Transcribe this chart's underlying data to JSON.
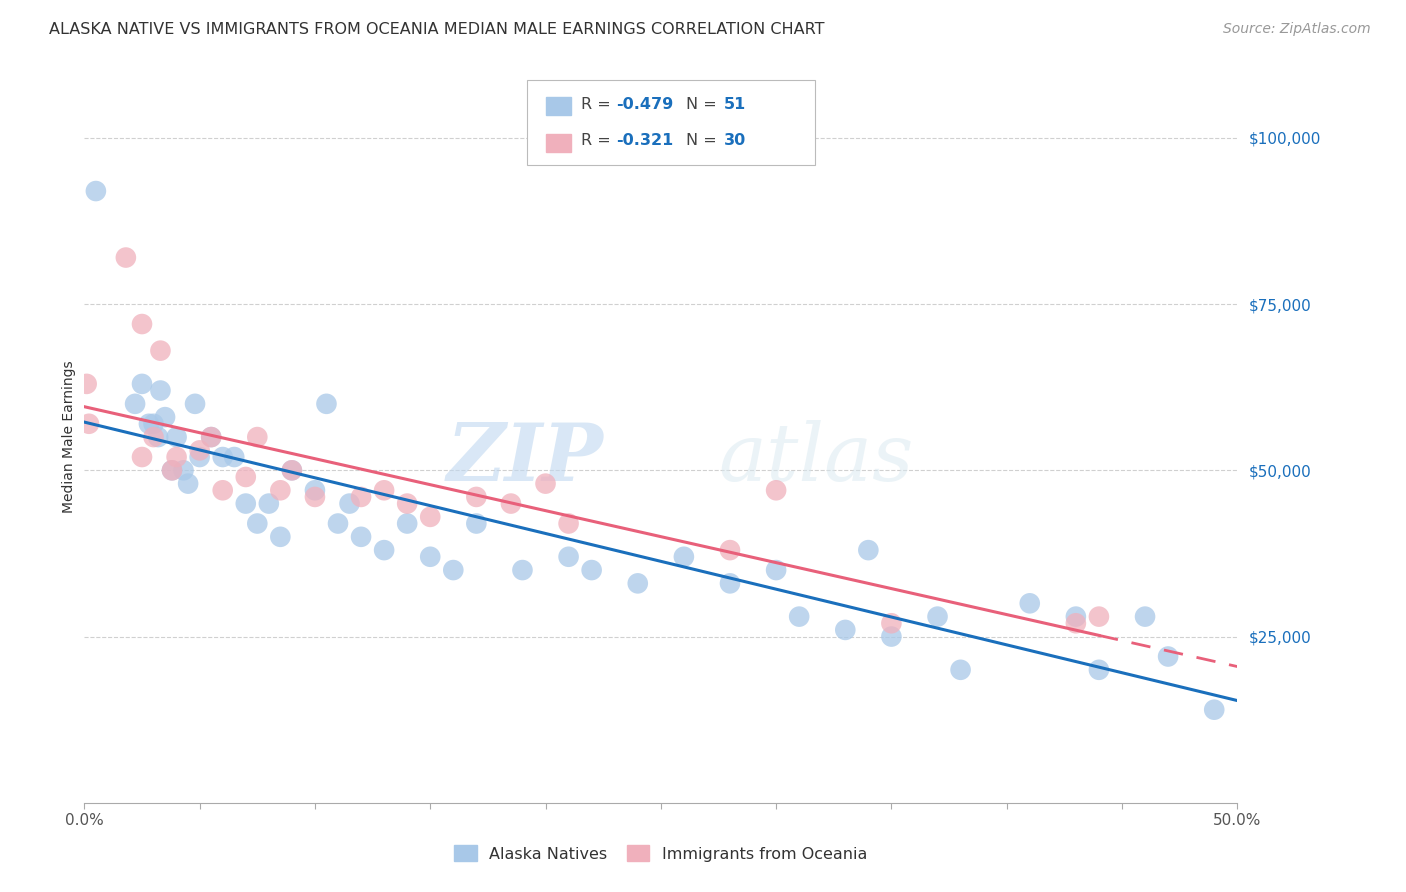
{
  "title": "ALASKA NATIVE VS IMMIGRANTS FROM OCEANIA MEDIAN MALE EARNINGS CORRELATION CHART",
  "source": "Source: ZipAtlas.com",
  "ylabel": "Median Male Earnings",
  "ytick_labels": [
    "$25,000",
    "$50,000",
    "$75,000",
    "$100,000"
  ],
  "ytick_values": [
    25000,
    50000,
    75000,
    100000
  ],
  "xlim": [
    0.0,
    0.5
  ],
  "ylim": [
    0,
    110000
  ],
  "background_color": "#ffffff",
  "grid_color": "#d0d0d0",
  "watermark": "ZIPatlas",
  "blue_color": "#a8c8e8",
  "pink_color": "#f0b0bc",
  "blue_line_color": "#1a6fbc",
  "pink_line_color": "#e8607a",
  "blue_x": [
    0.005,
    0.022,
    0.025,
    0.028,
    0.03,
    0.032,
    0.033,
    0.035,
    0.038,
    0.04,
    0.043,
    0.045,
    0.048,
    0.05,
    0.055,
    0.06,
    0.065,
    0.07,
    0.075,
    0.08,
    0.085,
    0.09,
    0.1,
    0.105,
    0.11,
    0.115,
    0.12,
    0.13,
    0.14,
    0.15,
    0.16,
    0.17,
    0.19,
    0.21,
    0.22,
    0.24,
    0.26,
    0.28,
    0.3,
    0.31,
    0.33,
    0.34,
    0.35,
    0.37,
    0.38,
    0.41,
    0.43,
    0.44,
    0.46,
    0.47,
    0.49
  ],
  "blue_y": [
    92000,
    60000,
    63000,
    57000,
    57000,
    55000,
    62000,
    58000,
    50000,
    55000,
    50000,
    48000,
    60000,
    52000,
    55000,
    52000,
    52000,
    45000,
    42000,
    45000,
    40000,
    50000,
    47000,
    60000,
    42000,
    45000,
    40000,
    38000,
    42000,
    37000,
    35000,
    42000,
    35000,
    37000,
    35000,
    33000,
    37000,
    33000,
    35000,
    28000,
    26000,
    38000,
    25000,
    28000,
    20000,
    30000,
    28000,
    20000,
    28000,
    22000,
    14000
  ],
  "pink_x": [
    0.001,
    0.002,
    0.018,
    0.025,
    0.025,
    0.03,
    0.033,
    0.038,
    0.04,
    0.05,
    0.055,
    0.06,
    0.07,
    0.075,
    0.085,
    0.09,
    0.1,
    0.12,
    0.13,
    0.14,
    0.15,
    0.17,
    0.185,
    0.2,
    0.21,
    0.28,
    0.3,
    0.35,
    0.43,
    0.44
  ],
  "pink_y": [
    63000,
    57000,
    82000,
    72000,
    52000,
    55000,
    68000,
    50000,
    52000,
    53000,
    55000,
    47000,
    49000,
    55000,
    47000,
    50000,
    46000,
    46000,
    47000,
    45000,
    43000,
    46000,
    45000,
    48000,
    42000,
    38000,
    47000,
    27000,
    27000,
    28000
  ],
  "legend_labels": [
    "Alaska Natives",
    "Immigrants from Oceania"
  ]
}
